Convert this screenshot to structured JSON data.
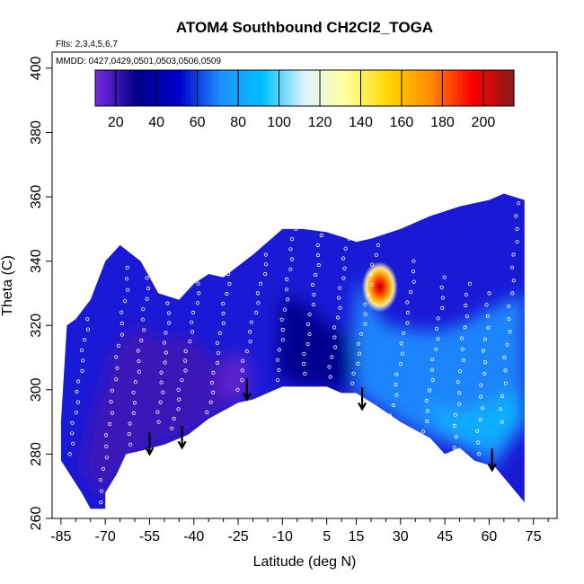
{
  "chart_data": {
    "type": "heatmap",
    "title": "ATOM4 Southbound CH2Cl2_TOGA",
    "annotation_flights": "Flts: 2,3,4,5,6,7",
    "annotation_dates": "MMDD: 0427,0429,0501,0503,0506,0509",
    "xlabel": "Latitude (deg N)",
    "ylabel": "Theta (C)",
    "xlim": [
      -88,
      83
    ],
    "ylim": [
      260,
      405
    ],
    "x_ticks": [
      -85,
      -70,
      -55,
      -40,
      -25,
      -10,
      5,
      15,
      30,
      45,
      60,
      75
    ],
    "x_tick_labels": [
      "-85",
      "-70",
      "-55",
      "-40",
      "-25",
      "-10",
      "5",
      "15",
      "30",
      "45",
      "60",
      "75"
    ],
    "x_minor_ticks": [
      -80,
      -75,
      -65,
      -60,
      -50,
      -45,
      -35,
      -30,
      -20,
      -15,
      -5,
      0,
      10,
      20,
      25,
      35,
      40,
      50,
      55,
      65,
      70,
      80
    ],
    "y_ticks": [
      260,
      280,
      300,
      320,
      340,
      360,
      380,
      400
    ],
    "y_tick_labels": [
      "260",
      "280",
      "300",
      "320",
      "340",
      "360",
      "380",
      "400"
    ],
    "colorbar": {
      "range": [
        10,
        215
      ],
      "ticks": [
        20,
        40,
        60,
        80,
        100,
        120,
        140,
        160,
        180,
        200
      ],
      "tick_labels": [
        "20",
        "40",
        "60",
        "80",
        "100",
        "120",
        "140",
        "160",
        "180",
        "200"
      ],
      "colors": [
        "#7a2be2",
        "#00008b",
        "#0000cd",
        "#1e90ff",
        "#00bfff",
        "#e0f4ff",
        "#ffff99",
        "#ffd700",
        "#ff8c00",
        "#ff0000",
        "#8b1a1a"
      ]
    },
    "top_boundary": [
      [
        -83,
        320
      ],
      [
        -80,
        322
      ],
      [
        -75,
        328
      ],
      [
        -70,
        340
      ],
      [
        -65,
        345
      ],
      [
        -58,
        340
      ],
      [
        -52,
        330
      ],
      [
        -45,
        328
      ],
      [
        -40,
        333
      ],
      [
        -35,
        336
      ],
      [
        -30,
        335
      ],
      [
        -20,
        342
      ],
      [
        -10,
        350
      ],
      [
        -3,
        350
      ],
      [
        5,
        349
      ],
      [
        12,
        347
      ],
      [
        15,
        346
      ],
      [
        20,
        347
      ],
      [
        30,
        350
      ],
      [
        40,
        354
      ],
      [
        50,
        357
      ],
      [
        60,
        359
      ],
      [
        65,
        361
      ],
      [
        72,
        359
      ]
    ],
    "bottom_boundary": [
      [
        72,
        290
      ],
      [
        72,
        265
      ],
      [
        62,
        276
      ],
      [
        55,
        278
      ],
      [
        50,
        282
      ],
      [
        45,
        280
      ],
      [
        40,
        285
      ],
      [
        30,
        290
      ],
      [
        22,
        295
      ],
      [
        15,
        299
      ],
      [
        10,
        299
      ],
      [
        5,
        301
      ],
      [
        -2,
        301
      ],
      [
        -10,
        301
      ],
      [
        -15,
        299
      ],
      [
        -20,
        297
      ],
      [
        -25,
        296
      ],
      [
        -35,
        291
      ],
      [
        -42,
        286
      ],
      [
        -50,
        283
      ],
      [
        -58,
        281
      ],
      [
        -63,
        280
      ],
      [
        -66,
        274
      ],
      [
        -70,
        268
      ],
      [
        -70,
        263
      ],
      [
        -75,
        263
      ],
      [
        -78,
        268
      ],
      [
        -85,
        278
      ],
      [
        -85,
        290
      ]
    ],
    "regions": [
      {
        "name": "southern-purple",
        "value": 20,
        "points": [
          [
            -78,
            275
          ],
          [
            -75,
            290
          ],
          [
            -68,
            310
          ],
          [
            -60,
            320
          ],
          [
            -55,
            318
          ],
          [
            -50,
            315
          ],
          [
            -42,
            318
          ],
          [
            -35,
            310
          ],
          [
            -25,
            308
          ],
          [
            -20,
            300
          ],
          [
            -25,
            296
          ],
          [
            -42,
            286
          ],
          [
            -58,
            281
          ],
          [
            -66,
            274
          ],
          [
            -70,
            266
          ]
        ]
      },
      {
        "name": "southern-lavender",
        "value": 15,
        "points": [
          [
            -33,
            300
          ],
          [
            -28,
            312
          ],
          [
            -22,
            310
          ],
          [
            -20,
            300
          ],
          [
            -25,
            296
          ]
        ]
      },
      {
        "name": "tropics-navy",
        "value": 32,
        "points": [
          [
            -10,
            330
          ],
          [
            0,
            325
          ],
          [
            5,
            320
          ],
          [
            12,
            318
          ],
          [
            15,
            310
          ],
          [
            12,
            300
          ],
          [
            5,
            301
          ],
          [
            -5,
            301
          ],
          [
            -12,
            305
          ]
        ]
      },
      {
        "name": "northern-blue",
        "value": 70,
        "points": [
          [
            15,
            335
          ],
          [
            25,
            320
          ],
          [
            40,
            318
          ],
          [
            50,
            320
          ],
          [
            60,
            325
          ],
          [
            72,
            330
          ],
          [
            72,
            290
          ],
          [
            62,
            276
          ],
          [
            50,
            282
          ],
          [
            40,
            285
          ],
          [
            30,
            290
          ],
          [
            22,
            295
          ],
          [
            15,
            299
          ],
          [
            14,
            320
          ]
        ]
      },
      {
        "name": "northern-light",
        "value": 85,
        "points": [
          [
            40,
            296
          ],
          [
            50,
            292
          ],
          [
            60,
            296
          ],
          [
            70,
            300
          ],
          [
            72,
            290
          ],
          [
            62,
            282
          ],
          [
            50,
            285
          ],
          [
            42,
            290
          ]
        ]
      }
    ],
    "hotspot": {
      "lat": 23,
      "theta": 332,
      "peak": 205
    },
    "arrows": [
      [
        -55,
        280
      ],
      [
        -44,
        282
      ],
      [
        -22,
        297
      ],
      [
        17,
        294
      ],
      [
        61,
        275
      ]
    ],
    "flight_tracks": [
      {
        "lat_start": -82,
        "theta_start": 280,
        "lat_end": -76,
        "theta_end": 322,
        "n": 14
      },
      {
        "lat_start": -72,
        "theta_start": 265,
        "lat_end": -62,
        "theta_end": 338,
        "n": 22
      },
      {
        "lat_start": -62,
        "theta_start": 283,
        "lat_end": -55,
        "theta_end": 338,
        "n": 18
      },
      {
        "lat_start": -52,
        "theta_start": 290,
        "lat_end": -48,
        "theta_end": 330,
        "n": 14
      },
      {
        "lat_start": -47,
        "theta_start": 288,
        "lat_end": -38,
        "theta_end": 333,
        "n": 16
      },
      {
        "lat_start": -35,
        "theta_start": 293,
        "lat_end": -28,
        "theta_end": 336,
        "n": 15
      },
      {
        "lat_start": -25,
        "theta_start": 300,
        "lat_end": -15,
        "theta_end": 342,
        "n": 15
      },
      {
        "lat_start": -12,
        "theta_start": 303,
        "lat_end": -6,
        "theta_end": 350,
        "n": 16
      },
      {
        "lat_start": -3,
        "theta_start": 305,
        "lat_end": 3,
        "theta_end": 348,
        "n": 15
      },
      {
        "lat_start": 6,
        "theta_start": 304,
        "lat_end": 12,
        "theta_end": 347,
        "n": 15
      },
      {
        "lat_start": 14,
        "theta_start": 302,
        "lat_end": 22,
        "theta_end": 345,
        "n": 15
      },
      {
        "lat_start": 27,
        "theta_start": 292,
        "lat_end": 35,
        "theta_end": 340,
        "n": 16
      },
      {
        "lat_start": 38,
        "theta_start": 287,
        "lat_end": 45,
        "theta_end": 335,
        "n": 16
      },
      {
        "lat_start": 48,
        "theta_start": 282,
        "lat_end": 53,
        "theta_end": 333,
        "n": 16
      },
      {
        "lat_start": 56,
        "theta_start": 280,
        "lat_end": 60,
        "theta_end": 330,
        "n": 15
      },
      {
        "lat_start": 64,
        "theta_start": 290,
        "lat_end": 70,
        "theta_end": 358,
        "n": 18
      }
    ]
  }
}
